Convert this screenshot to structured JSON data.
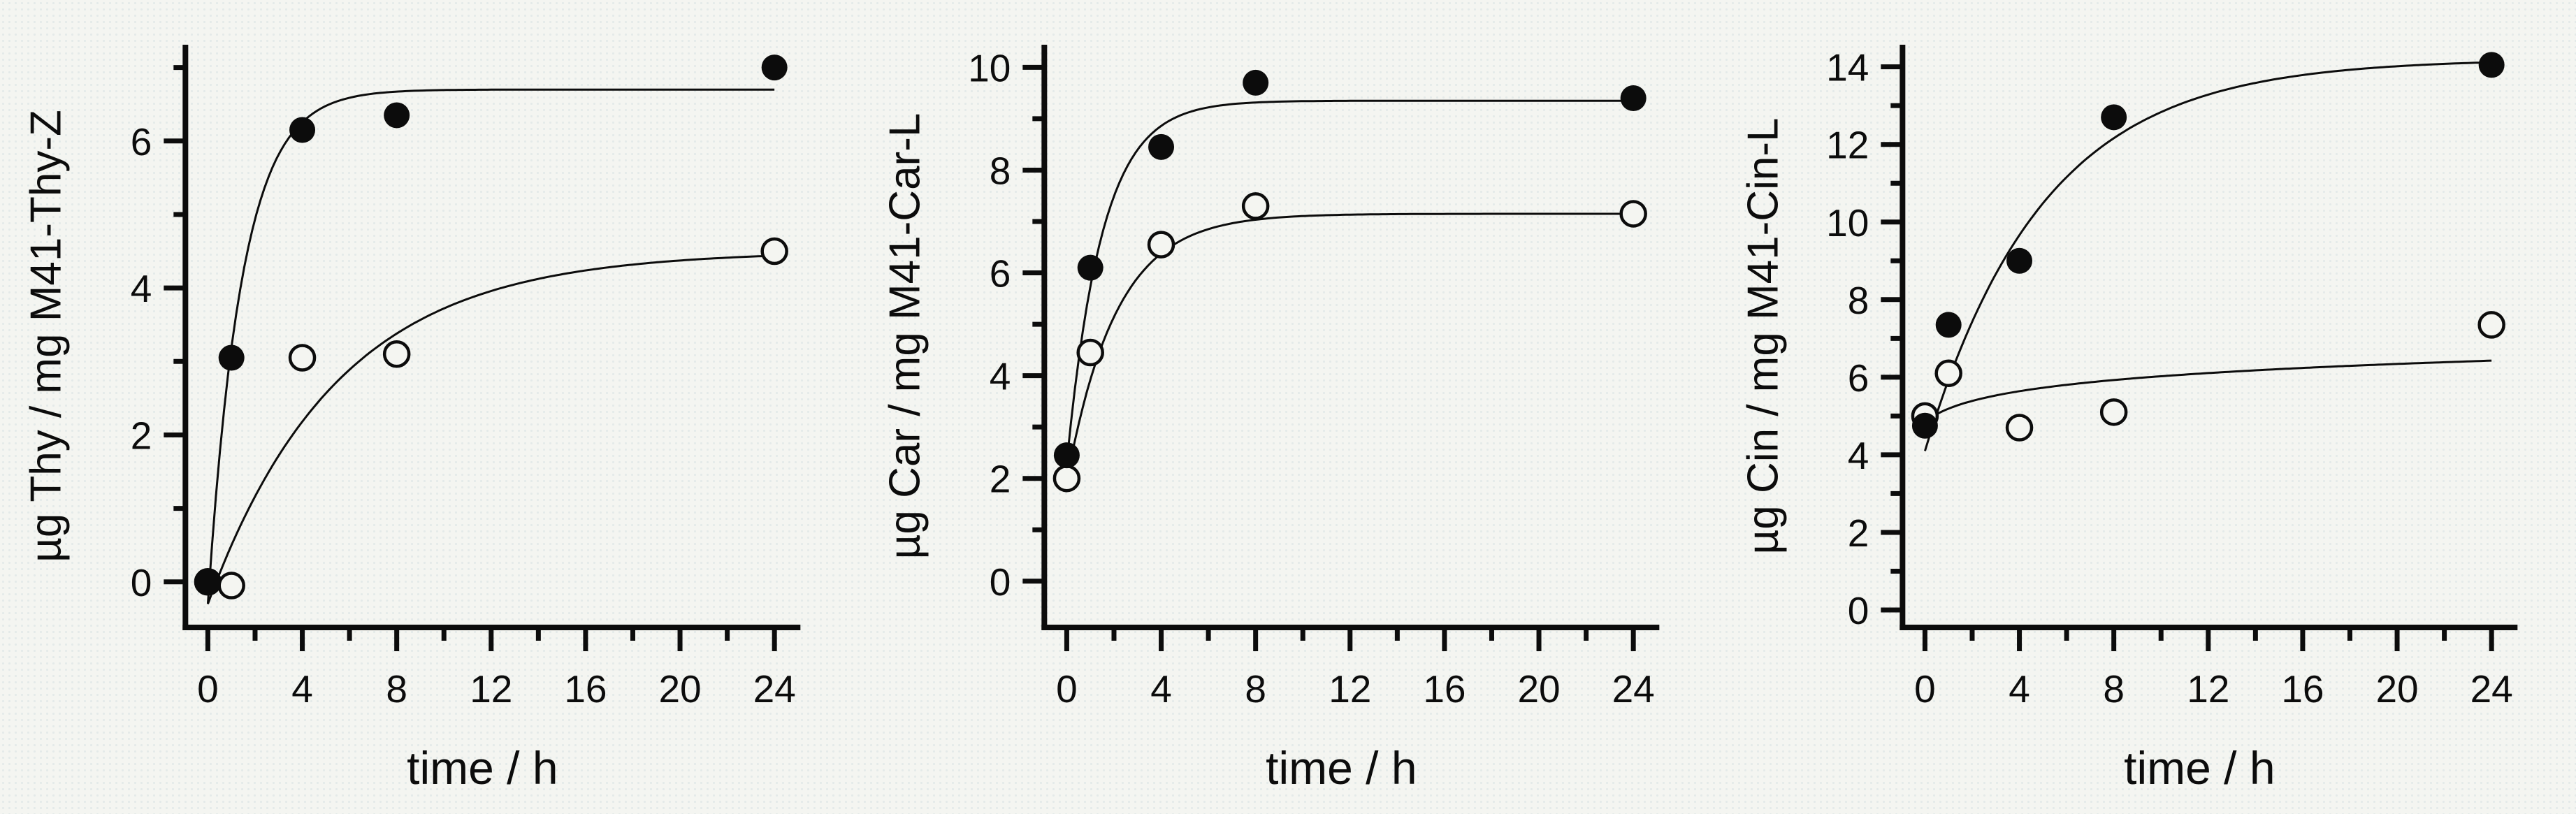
{
  "figure": {
    "description": "Three-panel scatter figure of guest loading versus time with exponential saturation fit curves",
    "background_color": "#f4f5f1",
    "foreground_color": "#0c0c0c",
    "marker_legend": {
      "filled_circle": "filled data series",
      "open_circle": "open data series"
    }
  },
  "chart_data": [
    {
      "type": "scatter",
      "panel": "Thy",
      "xlabel": "time / h",
      "ylabel": "µg Thy / mg M41-Thy-Z",
      "xlim": [
        -0.95,
        25.1
      ],
      "ylim": [
        -0.62,
        7.31
      ],
      "grid": false,
      "legend": "none",
      "x_ticks_major": [
        0,
        4,
        8,
        12,
        16,
        20,
        24
      ],
      "x_ticks_minor": [
        2,
        6,
        10,
        14,
        18,
        22
      ],
      "y_ticks_major": [
        0,
        2,
        4,
        6
      ],
      "y_ticks_minor": [
        1,
        3,
        5,
        7
      ],
      "series": [
        {
          "name": "filled-circles",
          "marker": "filled",
          "x": [
            0,
            1,
            4,
            8,
            24
          ],
          "y": [
            0.0,
            3.05,
            6.15,
            6.35,
            7.0
          ]
        },
        {
          "name": "open-circles",
          "marker": "open",
          "x": [
            0,
            1,
            4,
            8,
            24
          ],
          "y": [
            0.0,
            -0.05,
            3.05,
            3.1,
            4.5
          ]
        }
      ],
      "fits": [
        {
          "series": "filled-circles",
          "model": "exp_saturation",
          "formula": "y = y0 + A*(1-exp(-t/tau))",
          "y0": -0.3,
          "A": 7.0,
          "tau": 1.45,
          "t_range": [
            0,
            24
          ]
        },
        {
          "series": "open-circles",
          "model": "exp_saturation",
          "formula": "y = y0 + A*(1-exp(-t/tau))",
          "y0": -0.3,
          "A": 4.8,
          "tau": 5.5,
          "t_range": [
            0,
            24
          ]
        }
      ]
    },
    {
      "type": "scatter",
      "panel": "Car",
      "xlabel": "time / h",
      "ylabel": "µg Car / mg M41-Car-L",
      "xlim": [
        -0.95,
        25.1
      ],
      "ylim": [
        -0.9,
        10.44
      ],
      "grid": false,
      "legend": "none",
      "x_ticks_major": [
        0,
        4,
        8,
        12,
        16,
        20,
        24
      ],
      "x_ticks_minor": [
        2,
        6,
        10,
        14,
        18,
        22
      ],
      "y_ticks_major": [
        0,
        2,
        4,
        6,
        8,
        10
      ],
      "y_ticks_minor": [
        1,
        3,
        5,
        7,
        9
      ],
      "series": [
        {
          "name": "filled-circles",
          "marker": "filled",
          "x": [
            0,
            1,
            4,
            8,
            24
          ],
          "y": [
            2.45,
            6.1,
            8.45,
            9.7,
            9.4
          ]
        },
        {
          "name": "open-circles",
          "marker": "open",
          "x": [
            0,
            1,
            4,
            8,
            24
          ],
          "y": [
            2.0,
            4.45,
            6.55,
            7.3,
            7.15
          ]
        }
      ],
      "fits": [
        {
          "series": "filled-circles",
          "model": "exp_saturation",
          "formula": "y = y0 + A*(1-exp(-t/tau))",
          "y0": 2.3,
          "A": 7.05,
          "tau": 1.5,
          "t_range": [
            0,
            24
          ]
        },
        {
          "series": "open-circles",
          "model": "exp_saturation",
          "formula": "y = y0 + A*(1-exp(-t/tau))",
          "y0": 1.95,
          "A": 5.2,
          "tau": 2.1,
          "t_range": [
            0,
            24
          ]
        }
      ]
    },
    {
      "type": "scatter",
      "panel": "Cin",
      "xlabel": "time / h",
      "ylabel": "µg Cin / mg M41-Cin-L",
      "xlim": [
        -0.95,
        25.1
      ],
      "ylim": [
        -0.45,
        14.57
      ],
      "grid": false,
      "legend": "none",
      "x_ticks_major": [
        0,
        4,
        8,
        12,
        16,
        20,
        24
      ],
      "x_ticks_minor": [
        2,
        6,
        10,
        14,
        18,
        22
      ],
      "y_ticks_major": [
        0,
        2,
        4,
        6,
        8,
        10,
        12,
        14
      ],
      "y_ticks_minor": [
        1,
        3,
        5,
        7,
        9,
        11,
        13
      ],
      "series": [
        {
          "name": "filled-circles",
          "marker": "filled",
          "x": [
            0,
            1,
            4,
            8,
            24
          ],
          "y": [
            4.75,
            7.35,
            9.0,
            12.7,
            14.05
          ]
        },
        {
          "name": "open-circles",
          "marker": "open",
          "x": [
            0,
            1,
            4,
            8,
            24
          ],
          "y": [
            5.0,
            6.1,
            4.7,
            5.1,
            7.35
          ]
        }
      ],
      "fits": [
        {
          "series": "filled-circles",
          "model": "exp_saturation",
          "formula": "y = y0 + A*(1-exp(-t/tau))",
          "y0": 4.1,
          "A": 10.1,
          "tau": 5.0,
          "t_range": [
            0,
            24
          ]
        },
        {
          "series": "open-circles",
          "model": "log",
          "formula": "y = a + b*ln(1+t)",
          "a": 4.85,
          "b": 0.49,
          "t_range": [
            0,
            24
          ]
        }
      ]
    }
  ]
}
